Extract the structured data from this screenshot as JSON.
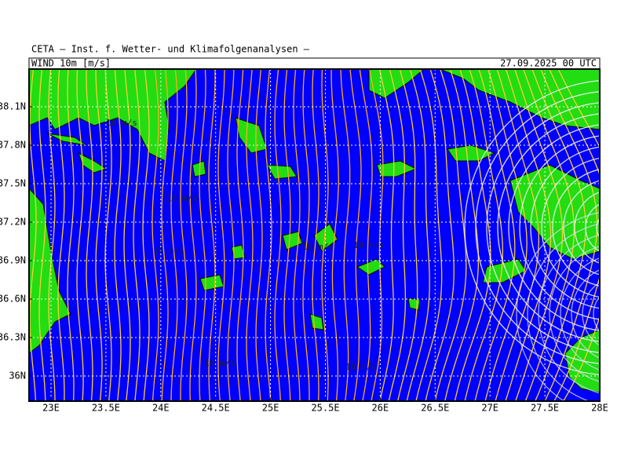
{
  "header": {
    "title": "CETA — Inst. f. Wetter- und Klimafolgenanalysen —",
    "field": "WIND 10m [m/s]",
    "date": "27.09.2025 00 UTC"
  },
  "map": {
    "y_labels": [
      "38.1N",
      "37.8N",
      "37.5N",
      "37.2N",
      "36.9N",
      "36.6N",
      "36.3N",
      "36N"
    ],
    "x_labels": [
      "23E",
      "23.5E",
      "24E",
      "24.5E",
      "25E",
      "25.5E",
      "26E",
      "26.5E",
      "27E",
      "27.5E",
      "28E"
    ],
    "speed_labels": [
      "10 m/s",
      "10 m/s",
      "10 m/s",
      "10 m/s",
      "10 m/s",
      "10 m/s",
      "10 m/s"
    ]
  }
}
